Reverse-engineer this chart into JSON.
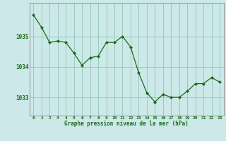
{
  "x": [
    0,
    1,
    2,
    3,
    4,
    5,
    6,
    7,
    8,
    9,
    10,
    11,
    12,
    13,
    14,
    15,
    16,
    17,
    18,
    19,
    20,
    21,
    22,
    23
  ],
  "y": [
    1035.7,
    1035.3,
    1034.8,
    1034.85,
    1034.8,
    1034.45,
    1034.05,
    1034.3,
    1034.35,
    1034.8,
    1034.8,
    1035.0,
    1034.65,
    1033.8,
    1033.15,
    1032.85,
    1033.1,
    1033.0,
    1033.0,
    1033.2,
    1033.45,
    1033.45,
    1033.65,
    1033.5
  ],
  "line_color": "#1a6b1a",
  "marker_color": "#1a6b1a",
  "bg_color": "#cce8e8",
  "grid_color": "#99ccbb",
  "axis_label_color": "#1a6b1a",
  "tick_color": "#1a6b1a",
  "xlabel": "Graphe pression niveau de la mer (hPa)",
  "yticks": [
    1033,
    1034,
    1035
  ],
  "ylim": [
    1032.4,
    1036.1
  ],
  "xlim": [
    -0.5,
    23.5
  ]
}
